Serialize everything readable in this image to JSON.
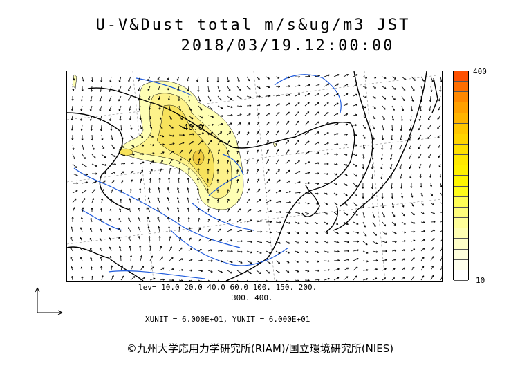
{
  "header": {
    "title_line1": "U-V&Dust total m/s&ug/m3 JST",
    "title_line2": "2018/03/19.12:00:00"
  },
  "colorbar": {
    "max_label": "400",
    "min_label": "10",
    "colors": [
      "#fe5000",
      "#fe6e00",
      "#fe8800",
      "#fea000",
      "#feb400",
      "#fec600",
      "#fed400",
      "#fee000",
      "#fee800",
      "#fef000",
      "#fef600",
      "#fefc1a",
      "#fefd55",
      "#fefd7c",
      "#fefe99",
      "#fefeb2",
      "#fefec8",
      "#fefedc",
      "#fefeec",
      "#ffffff"
    ]
  },
  "levels": {
    "line1": "lev= 10.0 20.0 40.0 60.0 100. 150. 200.",
    "line2": "300. 400."
  },
  "units_text": "XUNIT = 6.000E+01, YUNIT = 6.000E+01",
  "contour_label": "40.0",
  "footer": "©九州大学応用力学研究所(RIAM)/国立環境研究所(NIES)",
  "colors": {
    "coast": "#000000",
    "river": "#1e5adc",
    "dust_low": "#fefeb4",
    "dust_mid": "#fdf28a",
    "dust_high": "#f7e25c"
  }
}
